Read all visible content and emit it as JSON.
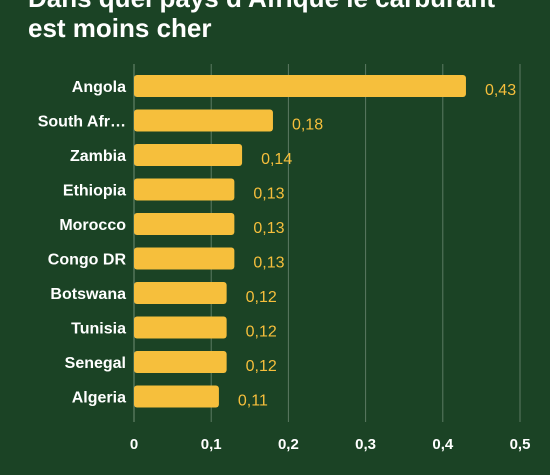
{
  "title": {
    "line1": "Dans quel pays d'Afrique le carburant",
    "line2": "est moins cher"
  },
  "colors": {
    "background": "#1b4325",
    "bar": "#f6bf3c",
    "grid": "#5c7a62"
  },
  "chart_data": {
    "type": "bar",
    "orientation": "horizontal",
    "categories": [
      "Angola",
      "South Afr…",
      "Zambia",
      "Ethiopia",
      "Morocco",
      "Congo DR",
      "Botswana",
      "Tunisia",
      "Senegal",
      "Algeria"
    ],
    "values": [
      0.43,
      0.18,
      0.14,
      0.13,
      0.13,
      0.13,
      0.12,
      0.12,
      0.12,
      0.11
    ],
    "value_labels": [
      "0,43",
      "0,18",
      "0,14",
      "0,13",
      "0,13",
      "0,13",
      "0,12",
      "0,12",
      "0,12",
      "0,11"
    ],
    "x_ticks": [
      "0",
      "0,1",
      "0,2",
      "0,3",
      "0,4",
      "0,5"
    ],
    "xlim": [
      0,
      0.5
    ],
    "grid": true
  }
}
